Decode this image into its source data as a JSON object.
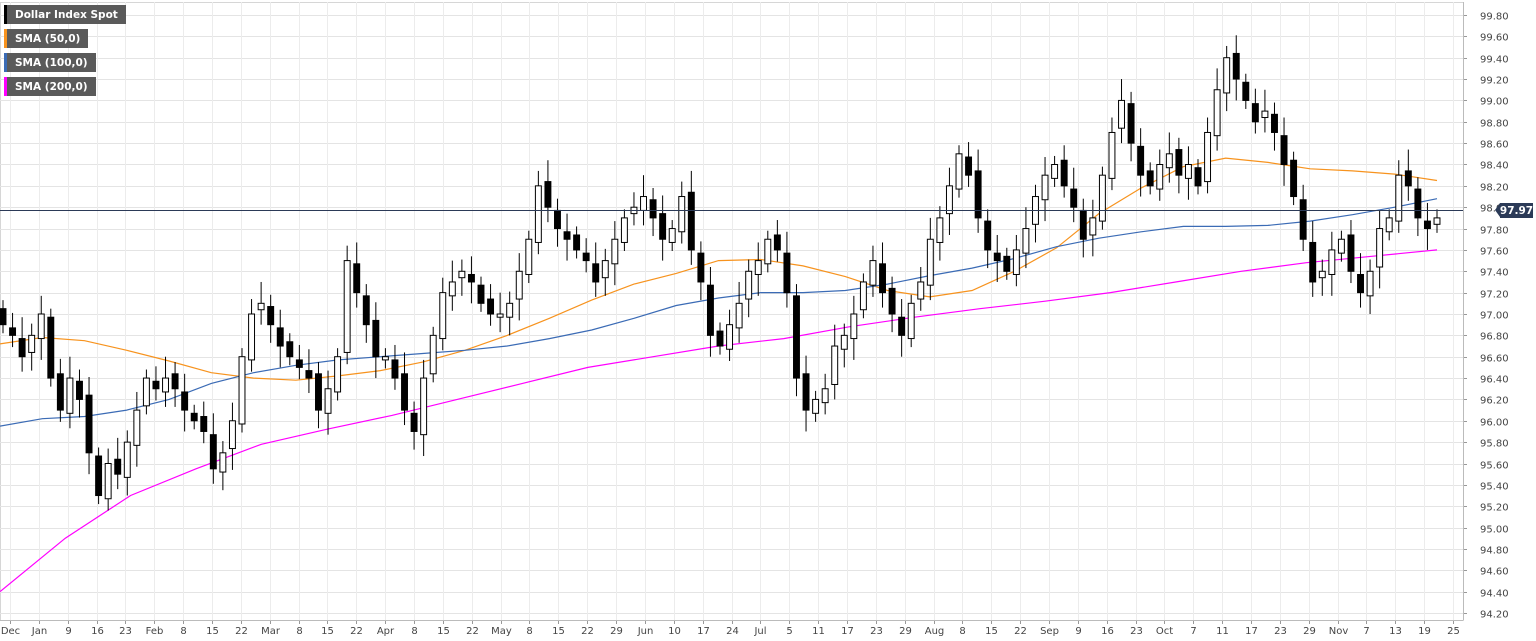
{
  "legend": [
    {
      "label": "Dollar Index Spot",
      "color": "#000000"
    },
    {
      "label": "SMA (50,0)",
      "color": "#f7931e"
    },
    {
      "label": "SMA (100,0)",
      "color": "#3b6bb5"
    },
    {
      "label": "SMA (200,0)",
      "color": "#ff00ff"
    }
  ],
  "last_price_label": "97.97",
  "chart_data": {
    "type": "candlestick",
    "title": "",
    "ylim": [
      94.2,
      99.8
    ],
    "y_ticks": [
      "99.80",
      "99.60",
      "99.40",
      "99.20",
      "99.00",
      "98.80",
      "98.60",
      "98.40",
      "98.20",
      "98.00",
      "97.80",
      "97.60",
      "97.40",
      "97.20",
      "97.00",
      "96.80",
      "96.60",
      "96.40",
      "96.20",
      "96.00",
      "95.80",
      "95.60",
      "95.40",
      "95.20",
      "95.00",
      "94.80",
      "94.60",
      "94.40",
      "94.20"
    ],
    "x_ticks": [
      "Dec",
      "Jan",
      "9",
      "16",
      "23",
      "Feb",
      "8",
      "15",
      "22",
      "Mar",
      "8",
      "15",
      "22",
      "Apr",
      "8",
      "15",
      "22",
      "May",
      "8",
      "15",
      "22",
      "29",
      "Jun",
      "10",
      "17",
      "24",
      "Jul",
      "5",
      "11",
      "17",
      "23",
      "29",
      "Aug",
      "8",
      "15",
      "22",
      "Sep",
      "9",
      "16",
      "23",
      "Oct",
      "7",
      "11",
      "17",
      "23",
      "29",
      "Nov",
      "7",
      "13",
      "19",
      "25"
    ],
    "last_price": 97.97,
    "grid": true,
    "candle_colors": {
      "up": "#ffffff",
      "down": "#000000"
    },
    "candles_close": [
      96.9,
      96.8,
      96.6,
      96.8,
      97.0,
      96.4,
      96.1,
      96.4,
      96.2,
      95.7,
      95.3,
      95.6,
      95.5,
      95.8,
      96.1,
      96.4,
      96.3,
      96.4,
      96.3,
      96.1,
      96.0,
      95.9,
      95.55,
      95.7,
      96.0,
      96.6,
      97.0,
      97.1,
      96.9,
      96.7,
      96.6,
      96.5,
      96.4,
      96.1,
      96.3,
      96.6,
      97.5,
      97.2,
      96.9,
      96.6,
      96.6,
      96.4,
      96.1,
      95.9,
      96.4,
      96.8,
      97.2,
      97.3,
      97.4,
      97.3,
      97.1,
      97.0,
      97.0,
      97.1,
      97.4,
      97.7,
      98.2,
      98.0,
      97.8,
      97.7,
      97.6,
      97.5,
      97.3,
      97.5,
      97.7,
      97.9,
      98.0,
      98.1,
      97.9,
      97.7,
      97.8,
      98.1,
      97.6,
      97.3,
      96.8,
      96.7,
      96.9,
      97.1,
      97.4,
      97.5,
      97.7,
      97.6,
      97.2,
      96.4,
      96.1,
      96.2,
      96.3,
      96.7,
      96.8,
      97.0,
      97.3,
      97.5,
      97.2,
      97.0,
      96.8,
      97.1,
      97.3,
      97.7,
      97.9,
      98.2,
      98.5,
      98.3,
      97.9,
      97.6,
      97.5,
      97.4,
      97.6,
      97.8,
      98.1,
      98.3,
      98.4,
      98.2,
      98.0,
      97.7,
      97.9,
      98.3,
      98.7,
      99.0,
      98.6,
      98.3,
      98.2,
      98.4,
      98.5,
      98.3,
      98.4,
      98.2,
      98.7,
      99.1,
      99.4,
      99.2,
      99.0,
      98.8,
      98.9,
      98.7,
      98.4,
      98.1,
      97.7,
      97.3,
      97.4,
      97.6,
      97.7,
      97.4,
      97.2,
      97.4,
      97.8,
      97.9,
      98.3,
      98.2,
      97.9,
      97.8,
      97.9
    ],
    "series": [
      {
        "name": "SMA (50,0)",
        "color": "#f7931e",
        "values": [
          96.72,
          96.78,
          96.75,
          96.66,
          96.56,
          96.45,
          96.4,
          96.38,
          96.42,
          96.47,
          96.55,
          96.66,
          96.8,
          96.96,
          97.13,
          97.28,
          97.38,
          97.5,
          97.51,
          97.45,
          97.35,
          97.22,
          97.16,
          97.22,
          97.4,
          97.62,
          97.94,
          98.18,
          98.38,
          98.46,
          98.42,
          98.36,
          98.34,
          98.31,
          98.25
        ]
      },
      {
        "name": "SMA (100,0)",
        "color": "#3b6bb5",
        "values": [
          95.95,
          96.02,
          96.04,
          96.1,
          96.2,
          96.35,
          96.45,
          96.52,
          96.57,
          96.6,
          96.63,
          96.66,
          96.7,
          96.77,
          96.85,
          96.96,
          97.08,
          97.15,
          97.2,
          97.2,
          97.22,
          97.28,
          97.36,
          97.43,
          97.52,
          97.63,
          97.71,
          97.77,
          97.82,
          97.82,
          97.83,
          97.87,
          97.93,
          98.0,
          98.08
        ]
      },
      {
        "name": "SMA (200,0)",
        "color": "#ff00ff",
        "values": [
          94.4,
          94.9,
          95.3,
          95.55,
          95.78,
          95.92,
          96.05,
          96.2,
          96.35,
          96.5,
          96.6,
          96.7,
          96.77,
          96.88,
          96.97,
          97.05,
          97.12,
          97.2,
          97.3,
          97.4,
          97.48,
          97.54,
          97.6
        ]
      }
    ]
  }
}
